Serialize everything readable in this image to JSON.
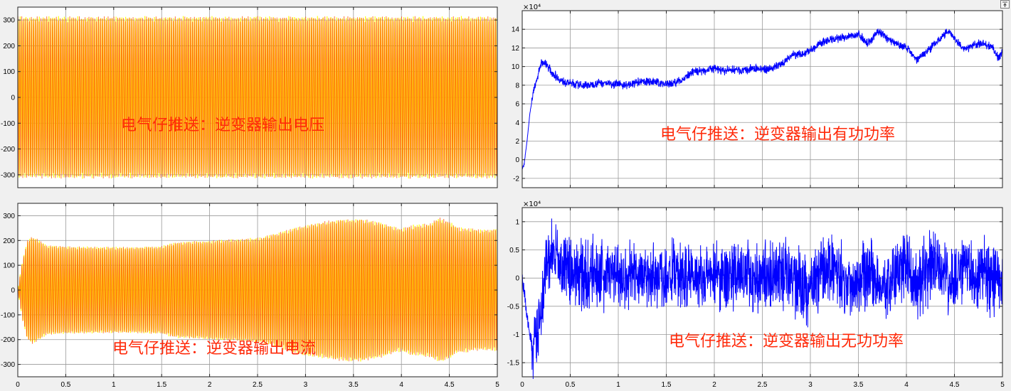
{
  "colors": {
    "figure_bg": "#f0f0f0",
    "axes_bg": "#ffffff",
    "grid": "#9a9a9a",
    "yellow": "#ffff00",
    "orange_red": "#ff5500",
    "blue": "#0000ff",
    "annotation": "#ff2a0a"
  },
  "icons": {
    "corner_button": "restore-window-icon"
  },
  "chart_data": [
    {
      "id": "voltage",
      "type": "line",
      "title": "",
      "xlabel": "",
      "ylabel": "",
      "xlim": [
        0,
        5
      ],
      "ylim": [
        -350,
        350
      ],
      "yticks": [
        -300,
        -200,
        -100,
        0,
        100,
        200,
        300
      ],
      "ytick_labels": [
        "-300",
        "-200",
        "-100",
        "0",
        "100",
        "200",
        "300"
      ],
      "xtick_labels": [],
      "exponent_label": "",
      "grid": true,
      "annotation": "电气仔推送：逆变器输出电压",
      "series": [
        {
          "style": "ac-pair",
          "frequency_hz": 50,
          "amplitude_envelope": {
            "x": [
              0,
              5
            ],
            "y": [
              311,
              311
            ]
          }
        }
      ]
    },
    {
      "id": "active_power",
      "type": "line",
      "title": "",
      "xlabel": "",
      "ylabel": "",
      "xlim": [
        0,
        5
      ],
      "ylim": [
        -3,
        16
      ],
      "yticks": [
        -2,
        0,
        2,
        4,
        6,
        8,
        10,
        12,
        14
      ],
      "ytick_labels": [
        "-2",
        "0",
        "2",
        "4",
        "6",
        "8",
        "10",
        "12",
        "14"
      ],
      "xtick_labels": [],
      "exponent_label": "×10⁴",
      "grid": true,
      "annotation": "电气仔推送：逆变器输出有功功率",
      "series": [
        {
          "style": "noisy-line",
          "noise": 0.55,
          "x": [
            0,
            0.02,
            0.05,
            0.08,
            0.12,
            0.15,
            0.2,
            0.25,
            0.3,
            0.35,
            0.4,
            0.5,
            0.6,
            0.7,
            0.8,
            0.9,
            1.0,
            1.1,
            1.2,
            1.3,
            1.4,
            1.5,
            1.6,
            1.7,
            1.8,
            1.9,
            2.0,
            2.1,
            2.2,
            2.3,
            2.4,
            2.5,
            2.6,
            2.7,
            2.8,
            2.9,
            3.0,
            3.1,
            3.2,
            3.3,
            3.4,
            3.5,
            3.6,
            3.65,
            3.7,
            3.75,
            3.8,
            3.9,
            4.0,
            4.1,
            4.15,
            4.2,
            4.3,
            4.4,
            4.45,
            4.5,
            4.6,
            4.7,
            4.8,
            4.9,
            4.95,
            5.0
          ],
          "y": [
            -1,
            -0.5,
            2,
            5,
            7.5,
            8.5,
            10.5,
            10.3,
            9.5,
            9,
            8.5,
            8.2,
            8,
            8,
            8.3,
            8.2,
            8.1,
            8,
            8.3,
            8.4,
            8.3,
            8.1,
            8.3,
            8.8,
            9.5,
            9.6,
            9.8,
            9.5,
            9.7,
            9.5,
            9.8,
            9.7,
            9.8,
            10.3,
            11.2,
            11.3,
            11.7,
            12.5,
            12.8,
            13,
            13.2,
            13.5,
            12.5,
            13,
            13.8,
            13.5,
            13,
            12.5,
            12,
            10.8,
            11.2,
            11.5,
            12.5,
            13.5,
            13.8,
            13,
            11.8,
            12.3,
            12.5,
            12,
            11,
            11.5
          ]
        }
      ]
    },
    {
      "id": "current",
      "type": "line",
      "title": "",
      "xlabel": "",
      "ylabel": "",
      "xlim": [
        0,
        5
      ],
      "ylim": [
        -350,
        350
      ],
      "yticks": [
        -300,
        -200,
        -100,
        0,
        100,
        200,
        300
      ],
      "ytick_labels": [
        "-300",
        "-200",
        "-100",
        "0",
        "100",
        "200",
        "300"
      ],
      "xtick_labels": [
        "0",
        "0.5",
        "1",
        "1.5",
        "2",
        "2.5",
        "3",
        "3.5",
        "4",
        "4.5",
        "5"
      ],
      "exponent_label": "",
      "grid": true,
      "annotation": "电气仔推送：逆变器输出电流",
      "series": [
        {
          "style": "ac-pair",
          "frequency_hz": 50,
          "amplitude_envelope": {
            "x": [
              0,
              0.05,
              0.1,
              0.15,
              0.2,
              0.3,
              0.5,
              1.0,
              1.5,
              1.6,
              1.7,
              2.0,
              2.3,
              2.5,
              2.6,
              2.8,
              3.0,
              3.2,
              3.4,
              3.6,
              3.8,
              3.9,
              4.0,
              4.1,
              4.3,
              4.4,
              4.5,
              4.6,
              4.7,
              4.8,
              5.0
            ],
            "y": [
              5,
              120,
              200,
              215,
              205,
              180,
              175,
              172,
              175,
              188,
              193,
              198,
              205,
              210,
              218,
              240,
              262,
              275,
              285,
              285,
              270,
              255,
              245,
              260,
              268,
              290,
              275,
              250,
              248,
              242,
              245
            ]
          }
        }
      ]
    },
    {
      "id": "reactive_power",
      "type": "line",
      "title": "",
      "xlabel": "",
      "ylabel": "",
      "xlim": [
        0,
        5
      ],
      "ylim": [
        -1.75,
        1.25
      ],
      "yticks": [
        -1.5,
        -1,
        -0.5,
        0,
        0.5,
        1
      ],
      "ytick_labels": [
        "-1.5",
        "-1",
        "-0.5",
        "0",
        "0.5",
        "1"
      ],
      "xtick_labels": [
        "0",
        "0.5",
        "1",
        "1.5",
        "2",
        "2.5",
        "3",
        "3.5",
        "4",
        "4.5",
        "5"
      ],
      "exponent_label": "×10⁴",
      "grid": true,
      "annotation": "电气仔推送：逆变器输出无功功率",
      "series": [
        {
          "style": "noisy-line",
          "noise": 0.75,
          "x": [
            0,
            0.03,
            0.06,
            0.1,
            0.15,
            0.2,
            0.25,
            0.3,
            0.35,
            0.4,
            0.5,
            0.6,
            0.7,
            0.8,
            0.9,
            1.0,
            1.2,
            1.4,
            1.6,
            1.8,
            2.0,
            2.2,
            2.4,
            2.6,
            2.8,
            2.9,
            3.0,
            3.1,
            3.2,
            3.3,
            3.4,
            3.5,
            3.6,
            3.7,
            3.8,
            3.9,
            4.0,
            4.1,
            4.2,
            4.3,
            4.4,
            4.5,
            4.6,
            4.7,
            4.8,
            4.9,
            5.0
          ],
          "y": [
            0,
            -0.4,
            -0.8,
            -1.2,
            -1,
            -0.5,
            0.2,
            0.4,
            0.35,
            0.2,
            0.1,
            0.05,
            0.05,
            0.1,
            0.05,
            0.05,
            0.05,
            0.05,
            0.05,
            0.05,
            0.05,
            0.05,
            0.05,
            0.05,
            0.05,
            -0.1,
            -0.25,
            0.1,
            0.2,
            0.05,
            -0.15,
            0.05,
            0.15,
            -0.1,
            -0.25,
            0.15,
            0.2,
            -0.2,
            0.1,
            0.2,
            0.05,
            -0.1,
            0.2,
            0.05,
            0.1,
            -0.1,
            0.05
          ]
        }
      ]
    }
  ]
}
